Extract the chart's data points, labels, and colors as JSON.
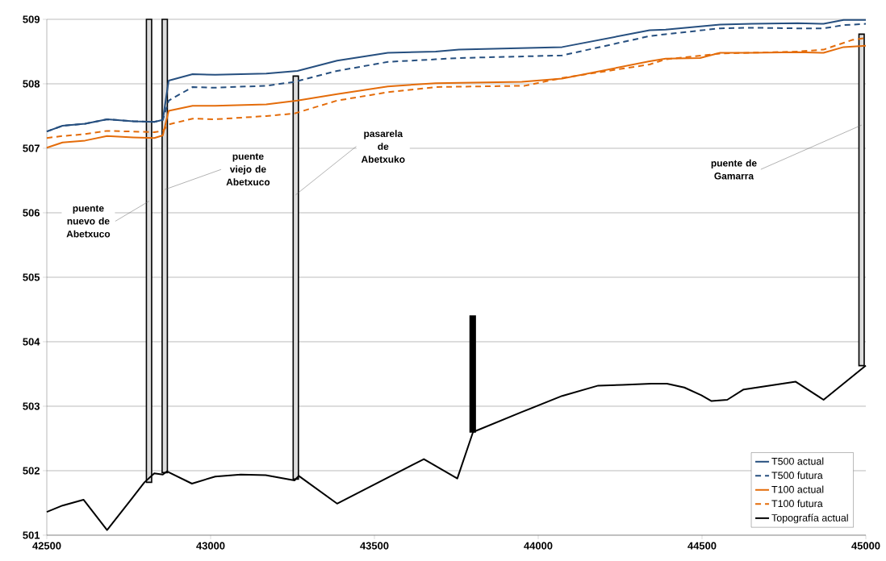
{
  "chart_data": {
    "type": "line",
    "xlim": [
      42500,
      45000
    ],
    "ylim": [
      501,
      509
    ],
    "xticks": [
      42500,
      43000,
      43500,
      44000,
      44500,
      45000
    ],
    "yticks": [
      501,
      502,
      503,
      504,
      505,
      506,
      507,
      508,
      509
    ],
    "grid": "y",
    "legend": "bottom right",
    "series": [
      {
        "name": "T500 actual",
        "color": "#264f7f",
        "line_style": "solid",
        "x": [
          42500,
          42548,
          42617,
          42684,
          42764,
          42828,
          42854,
          42872,
          42945,
          43014,
          43170,
          43265,
          43386,
          43541,
          43687,
          43758,
          44073,
          44340,
          44389,
          44555,
          44652,
          44792,
          44871,
          44932,
          45000
        ],
        "values": [
          507.26,
          507.35,
          507.38,
          507.45,
          507.42,
          507.41,
          507.44,
          508.05,
          508.15,
          508.14,
          508.16,
          508.2,
          508.36,
          508.48,
          508.5,
          508.53,
          508.57,
          508.83,
          508.84,
          508.92,
          508.93,
          508.94,
          508.93,
          508.99,
          508.99
        ]
      },
      {
        "name": "T500 futura",
        "color": "#264f7f",
        "line_style": "dashed",
        "x": [
          42500,
          42548,
          42617,
          42684,
          42764,
          42828,
          42854,
          42872,
          42945,
          43014,
          43170,
          43256,
          43386,
          43541,
          43687,
          43758,
          44073,
          44340,
          44389,
          44555,
          44652,
          44792,
          44871,
          44932,
          45000
        ],
        "values": [
          507.26,
          507.35,
          507.38,
          507.45,
          507.42,
          507.41,
          507.44,
          507.74,
          507.95,
          507.94,
          507.97,
          508.03,
          508.2,
          508.34,
          508.38,
          508.4,
          508.44,
          508.74,
          508.77,
          508.86,
          508.87,
          508.86,
          508.86,
          508.91,
          508.93
        ]
      },
      {
        "name": "T100 actual",
        "color": "#e46c0a",
        "line_style": "solid",
        "x": [
          42500,
          42548,
          42617,
          42684,
          42764,
          42828,
          42854,
          42872,
          42945,
          43014,
          43170,
          43265,
          43386,
          43541,
          43687,
          43950,
          44073,
          44340,
          44389,
          44494,
          44555,
          44652,
          44792,
          44871,
          44932,
          45000
        ],
        "values": [
          507.01,
          507.09,
          507.12,
          507.19,
          507.17,
          507.16,
          507.2,
          507.58,
          507.66,
          507.66,
          507.68,
          507.74,
          507.84,
          507.96,
          508.01,
          508.03,
          508.08,
          508.35,
          508.39,
          508.4,
          508.48,
          508.48,
          508.49,
          508.48,
          508.57,
          508.59
        ]
      },
      {
        "name": "T100 futura",
        "color": "#e46c0a",
        "line_style": "dashed",
        "x": [
          42500,
          42548,
          42617,
          42684,
          42764,
          42828,
          42854,
          42872,
          42945,
          43014,
          43170,
          43256,
          43386,
          43541,
          43687,
          43959,
          44073,
          44340,
          44389,
          44555,
          44792,
          44871,
          44958,
          45000
        ],
        "values": [
          507.16,
          507.19,
          507.22,
          507.27,
          507.26,
          507.25,
          507.27,
          507.37,
          507.46,
          507.45,
          507.5,
          507.54,
          507.74,
          507.87,
          507.95,
          507.97,
          508.09,
          508.3,
          508.38,
          508.47,
          508.5,
          508.53,
          508.68,
          508.71
        ]
      },
      {
        "name": "Topografía actual",
        "color": "#000000",
        "line_style": "solid",
        "x": [
          42500,
          42548,
          42612,
          42684,
          42757,
          42798,
          42828,
          42854,
          42867,
          42943,
          43014,
          43092,
          43168,
          43256,
          43269,
          43386,
          43651,
          43753,
          43801,
          43950,
          44073,
          44183,
          44257,
          44345,
          44393,
          44446,
          44498,
          44529,
          44577,
          44627,
          44786,
          44871,
          45000
        ],
        "values": [
          501.36,
          501.46,
          501.55,
          501.08,
          501.55,
          501.82,
          501.96,
          501.94,
          501.99,
          501.8,
          501.91,
          501.94,
          501.93,
          501.85,
          501.92,
          501.49,
          502.18,
          501.88,
          502.6,
          502.91,
          503.16,
          503.32,
          503.33,
          503.35,
          503.35,
          503.29,
          503.17,
          503.08,
          503.1,
          503.26,
          503.38,
          503.1,
          503.63
        ]
      },
      {
        "type": "bar",
        "x": [
          42812,
          42860,
          43260,
          43800,
          44987
        ],
        "base": [
          501.82,
          501.97,
          501.87,
          502.6,
          503.63
        ],
        "values": [
          7.18,
          7.03,
          6.25,
          1.8,
          5.14
        ],
        "colors": [
          "#dddddd",
          "#dddddd",
          "#dddddd",
          "#000000",
          "#dddddd"
        ]
      }
    ],
    "annotations": [
      {
        "text": "puente nuevo de Abetxuco",
        "x": 42812,
        "y": 506.18
      },
      {
        "text": "puente viejo de Abetxuco",
        "x": 42860,
        "y": 506.36
      },
      {
        "text": "pasarela de Abetxuko",
        "x": 43260,
        "y": 506.28
      },
      {
        "text": "puente de Gamarra",
        "x": 44987,
        "y": 507.36
      }
    ]
  }
}
